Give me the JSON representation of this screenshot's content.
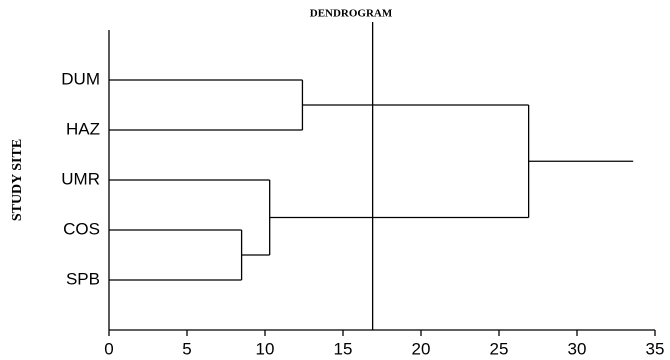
{
  "chart_data": {
    "type": "dendrogram",
    "title": "DENDROGRAM",
    "ylabel": "STUDY SITE",
    "leaves": [
      "DUM",
      "HAZ",
      "UMR",
      "COS",
      "SPB"
    ],
    "merges": [
      {
        "children": [
          3,
          4
        ],
        "height": 8.5
      },
      {
        "children": [
          2,
          5
        ],
        "height": 10.3
      },
      {
        "children": [
          0,
          1
        ],
        "height": 12.4
      },
      {
        "children": [
          7,
          6
        ],
        "height": 26.9
      }
    ],
    "root_tail": 33.6,
    "cut_line": 16.9,
    "color": "#000000",
    "xlim": [
      0,
      35
    ],
    "xticks": [
      0,
      5,
      10,
      15,
      20,
      25,
      30,
      35
    ]
  }
}
